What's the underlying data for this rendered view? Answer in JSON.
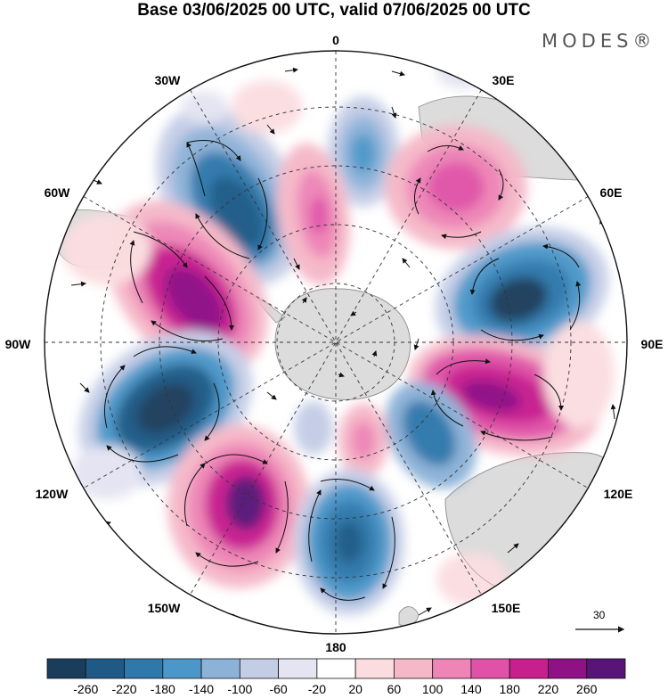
{
  "title": "Base 03/06/2025 00 UTC, valid 07/06/2025 00 UTC",
  "brand": "MODES®",
  "map": {
    "projection": "south-polar-stereographic",
    "longitude_labels": {
      "top": "0",
      "top_right": "30E",
      "right_upper": "60E",
      "right": "90E",
      "right_lower": "120E",
      "bottom_right": "150E",
      "bottom": "180",
      "bottom_left": "150W",
      "left_lower": "120W",
      "left": "90W",
      "left_upper": "60W",
      "top_left": "30W"
    },
    "vector_reference_value": "30"
  },
  "colorbar": {
    "tick_labels": [
      "-260",
      "-220",
      "-180",
      "-140",
      "-100",
      "-60",
      "-20",
      "20",
      "60",
      "100",
      "140",
      "180",
      "220",
      "260"
    ],
    "colors": [
      "#1a3d5c",
      "#1f5a87",
      "#2f78ac",
      "#4c97c9",
      "#8db2d8",
      "#c4cde6",
      "#e4e4f2",
      "#ffffff",
      "#fbdde0",
      "#f5b8c8",
      "#ee85b6",
      "#e052a8",
      "#c81f8f",
      "#8e1186",
      "#581478"
    ]
  },
  "colors": {
    "land": "#dcdcdc",
    "land_outline": "#8c8c8c",
    "grid": "#333333",
    "arrows": "#111111"
  }
}
